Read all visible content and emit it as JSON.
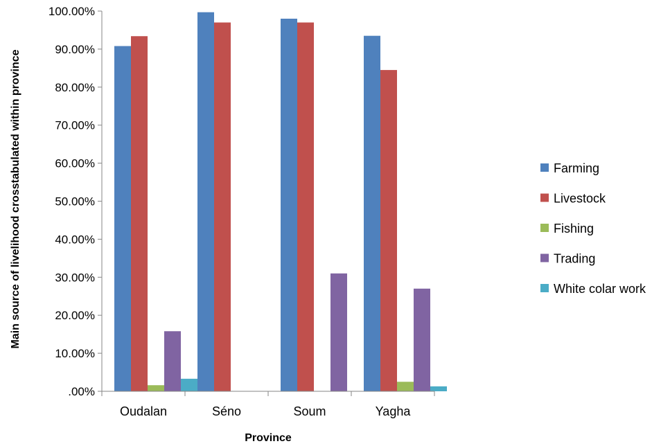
{
  "chart_data": {
    "type": "bar",
    "title": "",
    "xlabel": "Province",
    "ylabel": "Main source of livelihood crosstabulated within province",
    "categories": [
      "Oudalan",
      "Séno",
      "Soum",
      "Yagha"
    ],
    "series": [
      {
        "name": "Farming",
        "color": "#4F81BD",
        "values": [
          0.908,
          0.997,
          0.98,
          0.935
        ]
      },
      {
        "name": "Livestock",
        "color": "#C0504D",
        "values": [
          0.934,
          0.97,
          0.97,
          0.845
        ]
      },
      {
        "name": "Fishing",
        "color": "#9BBB59",
        "values": [
          0.016,
          0.0,
          0.0,
          0.025
        ]
      },
      {
        "name": "Trading",
        "color": "#8064A2",
        "values": [
          0.158,
          0.0,
          0.31,
          0.27
        ]
      },
      {
        "name": "White colar work",
        "color": "#4BACC6",
        "values": [
          0.033,
          0.0,
          0.0,
          0.013
        ]
      }
    ],
    "ylim": [
      0,
      1.0
    ],
    "yticks": [
      ".00%",
      "10.00%",
      "20.00%",
      "30.00%",
      "40.00%",
      "50.00%",
      "60.00%",
      "70.00%",
      "80.00%",
      "90.00%",
      "100.00%"
    ],
    "grid": false,
    "legend": "right"
  }
}
